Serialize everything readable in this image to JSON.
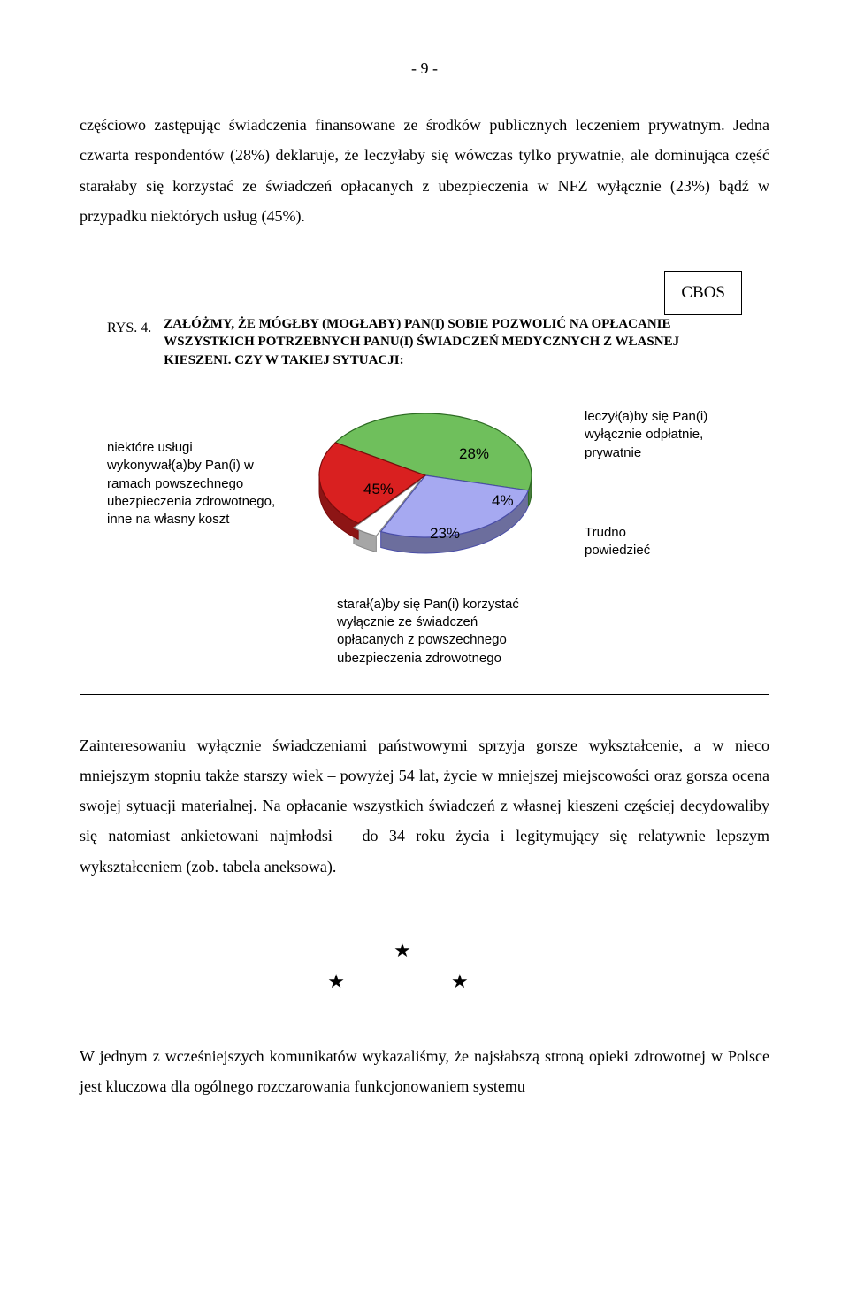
{
  "page_number": "- 9 -",
  "para1": "częściowo zastępując świadczenia finansowane ze środków publicznych leczeniem prywatnym. Jedna czwarta respondentów (28%) deklaruje, że leczyłaby się wówczas tylko prywatnie, ale dominująca część starałaby się korzystać ze świadczeń opłacanych z ubezpieczenia w NFZ wyłącznie (23%) bądź w przypadku niektórych usług (45%).",
  "figure": {
    "badge": "CBOS",
    "rys": "RYS. 4.",
    "title": "ZAŁÓŻMY, ŻE MÓGŁBY (MOGŁABY) PAN(I) SOBIE POZWOLIĆ NA OPŁACANIE WSZYSTKICH POTRZEBNYCH PANU(I) ŚWIADCZEŃ MEDYCZNYCH Z WŁASNEJ KIESZENI. CZY W TAKIEJ SYTUACJI:",
    "left_label": "niektóre usługi wykonywał(a)by Pan(i) w ramach powszechnego ubezpieczenia zdrowotnego, inne na własny koszt",
    "right_top": "leczył(a)by się Pan(i) wyłącznie odpłatnie, prywatnie",
    "right_bot_a": "Trudno",
    "right_bot_b": "powiedzieć",
    "footer": "starał(a)by się Pan(i) korzystać wyłącznie ze świadczeń opłacanych z powszechnego ubezpieczenia zdrowotnego",
    "pie": {
      "type": "pie",
      "slices": [
        {
          "label": "45%",
          "value": 45,
          "fill": "#6fbf5c",
          "stroke": "#2d6a23"
        },
        {
          "label": "28%",
          "value": 28,
          "fill": "#a6a9f1",
          "stroke": "#4a4ea8"
        },
        {
          "label": "4%",
          "value": 4,
          "fill": "#ffffff",
          "stroke": "#888888"
        },
        {
          "label": "23%",
          "value": 23,
          "fill": "#d92020",
          "stroke": "#7a0c0c"
        }
      ],
      "start_angle_deg": -148,
      "label_fontsize": 17,
      "side_color": "#2f5a1a",
      "side_color2": "#7a0c0c",
      "depth": 18
    }
  },
  "para2": "Zainteresowaniu wyłącznie świadczeniami państwowymi sprzyja gorsze wykształcenie, a w nieco mniejszym stopniu także starszy wiek – powyżej 54 lat, życie w mniejszej miejscowości oraz gorsza ocena swojej sytuacji materialnej. Na opłacanie wszystkich świadczeń z własnej kieszeni częściej decydowaliby się natomiast ankietowani najmłodsi – do 34 roku życia i legitymujący się relatywnie lepszym wykształceniem (zob. tabela aneksowa).",
  "para3": "W jednym z wcześniejszych komunikatów wykazaliśmy, że najsłabszą stroną opieki zdrowotnej w Polsce jest kluczowa dla ogólnego rozczarowania funkcjonowaniem systemu"
}
